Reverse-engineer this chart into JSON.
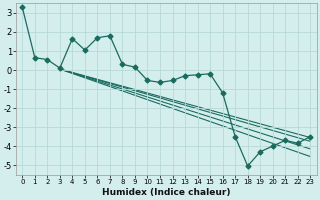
{
  "xlabel": "Humidex (Indice chaleur)",
  "bg_color": "#d4eeee",
  "grid_color": "#b8d8d8",
  "line_color": "#1a6b5e",
  "xlim": [
    -0.5,
    23.5
  ],
  "ylim": [
    -5.5,
    3.5
  ],
  "yticks": [
    -5,
    -4,
    -3,
    -2,
    -1,
    0,
    1,
    2,
    3
  ],
  "xticks": [
    0,
    1,
    2,
    3,
    4,
    5,
    6,
    7,
    8,
    9,
    10,
    11,
    12,
    13,
    14,
    15,
    16,
    17,
    18,
    19,
    20,
    21,
    22,
    23
  ],
  "main_x": [
    0,
    1,
    2,
    3,
    4,
    5,
    6,
    7,
    8,
    9,
    10,
    11,
    12,
    13,
    14,
    15,
    16,
    17,
    18,
    19,
    20,
    21,
    22,
    23
  ],
  "main_y": [
    3.3,
    0.65,
    0.55,
    0.1,
    1.65,
    1.05,
    1.7,
    1.8,
    0.3,
    0.15,
    -0.55,
    -0.65,
    -0.55,
    -0.3,
    -0.25,
    -0.2,
    -1.2,
    -3.5,
    -5.05,
    -4.3,
    -4.0,
    -3.7,
    -3.85,
    -3.5
  ],
  "fan_lines": [
    {
      "x": [
        3,
        23
      ],
      "y": [
        0.05,
        -3.55
      ]
    },
    {
      "x": [
        3,
        23
      ],
      "y": [
        0.05,
        -3.75
      ]
    },
    {
      "x": [
        3,
        23
      ],
      "y": [
        0.05,
        -4.15
      ]
    },
    {
      "x": [
        3,
        23
      ],
      "y": [
        0.05,
        -4.55
      ]
    }
  ]
}
